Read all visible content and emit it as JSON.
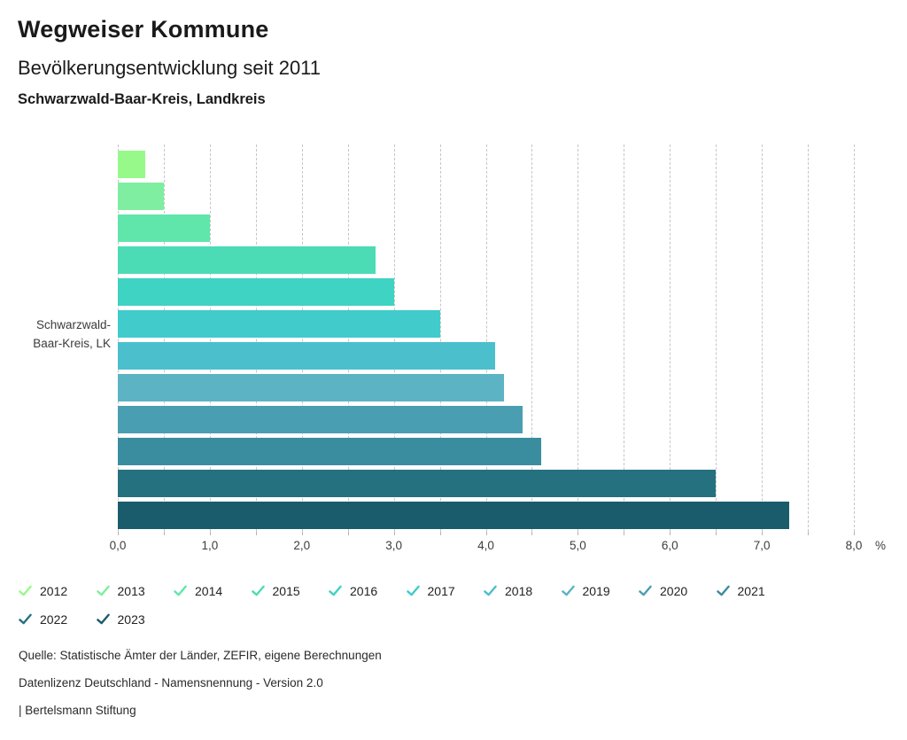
{
  "header": {
    "title": "Wegweiser Kommune",
    "subtitle": "Bevölkerungsentwicklung seit 2011",
    "region": "Schwarzwald-Baar-Kreis, Landkreis"
  },
  "footer": {
    "source": "Quelle: Statistische Ämter der Länder, ZEFIR, eigene Berechnungen",
    "license": "Datenlizenz Deutschland - Namensnennung - Version 2.0",
    "attribution": "| Bertelsmann Stiftung"
  },
  "chart_data": {
    "type": "bar",
    "orientation": "horizontal",
    "title": "Bevölkerungsentwicklung seit 2011",
    "category_label": "Schwarzwald-\nBaar-Kreis, LK",
    "unit": "%",
    "xlim": [
      0,
      8
    ],
    "x_major_step": 1.0,
    "x_minor_step": 0.5,
    "x_tick_labels": [
      "0,0",
      "1,0",
      "2,0",
      "3,0",
      "4,0",
      "5,0",
      "6,0",
      "7,0",
      "8,0"
    ],
    "grid": "vertical-dashed",
    "legend_position": "bottom",
    "series": [
      {
        "name": "2012",
        "value": 0.3,
        "color": "#98F98B"
      },
      {
        "name": "2013",
        "value": 0.5,
        "color": "#7FEEA0"
      },
      {
        "name": "2014",
        "value": 1.0,
        "color": "#60E6AB"
      },
      {
        "name": "2015",
        "value": 2.8,
        "color": "#4BDCB6"
      },
      {
        "name": "2016",
        "value": 3.0,
        "color": "#3ED3C2"
      },
      {
        "name": "2017",
        "value": 3.5,
        "color": "#41CBCB"
      },
      {
        "name": "2018",
        "value": 4.1,
        "color": "#4BBFCC"
      },
      {
        "name": "2019",
        "value": 4.2,
        "color": "#5BB3C4"
      },
      {
        "name": "2020",
        "value": 4.4,
        "color": "#4A9EB1"
      },
      {
        "name": "2021",
        "value": 4.6,
        "color": "#3A8C9F"
      },
      {
        "name": "2022",
        "value": 6.5,
        "color": "#26717F"
      },
      {
        "name": "2023",
        "value": 7.3,
        "color": "#1A5C6B"
      }
    ]
  }
}
